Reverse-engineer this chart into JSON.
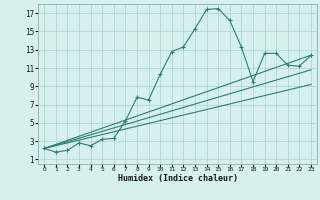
{
  "xlabel": "Humidex (Indice chaleur)",
  "ylabel": "",
  "background_color": "#d6f0ef",
  "grid_color": "#b0d8d5",
  "line_color": "#2e7d6e",
  "xlim": [
    -0.5,
    23.5
  ],
  "ylim": [
    0.5,
    18
  ],
  "xticks": [
    0,
    1,
    2,
    3,
    4,
    5,
    6,
    7,
    8,
    9,
    10,
    11,
    12,
    13,
    14,
    15,
    16,
    17,
    18,
    19,
    20,
    21,
    22,
    23
  ],
  "yticks": [
    1,
    3,
    5,
    7,
    9,
    11,
    13,
    15,
    17
  ],
  "main_x": [
    0,
    1,
    2,
    3,
    4,
    5,
    6,
    7,
    8,
    9,
    10,
    11,
    12,
    13,
    14,
    15,
    16,
    17,
    18,
    19,
    20,
    21,
    22,
    23
  ],
  "main_y": [
    2.2,
    1.8,
    2.0,
    2.8,
    2.5,
    3.2,
    3.3,
    5.2,
    7.8,
    7.5,
    10.3,
    12.8,
    13.3,
    15.3,
    17.4,
    17.5,
    16.2,
    13.3,
    9.5,
    12.6,
    12.6,
    11.3,
    11.2,
    12.4
  ],
  "line1_x": [
    0,
    23
  ],
  "line1_y": [
    2.2,
    12.4
  ],
  "line2_x": [
    0,
    23
  ],
  "line2_y": [
    2.2,
    10.8
  ],
  "line3_x": [
    0,
    23
  ],
  "line3_y": [
    2.2,
    9.2
  ]
}
